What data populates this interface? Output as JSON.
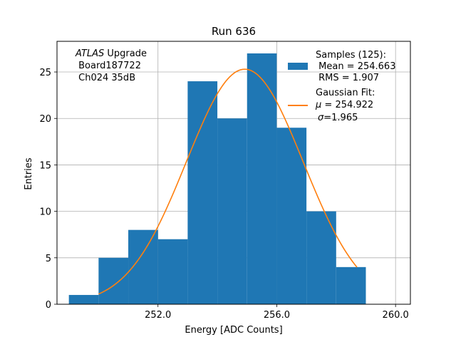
{
  "chart_data": {
    "type": "bar",
    "title": "Run 636",
    "xlabel": "Energy [ADC Counts]",
    "ylabel": "Entries",
    "xlim": [
      248.6,
      260.5
    ],
    "ylim": [
      0,
      28.3
    ],
    "xticks": [
      252.0,
      256.0,
      260.0
    ],
    "xtick_labels": [
      "252.0",
      "256.0",
      "260.0"
    ],
    "yticks": [
      0,
      5,
      10,
      15,
      20,
      25
    ],
    "ytick_labels": [
      "0",
      "5",
      "10",
      "15",
      "20",
      "25"
    ],
    "grid": true,
    "bin_edges": [
      249.0,
      250.0,
      251.0,
      252.0,
      253.0,
      254.0,
      255.0,
      256.0,
      257.0,
      258.0,
      259.0
    ],
    "values": [
      1,
      5,
      8,
      7,
      24,
      20,
      27,
      19,
      10,
      4
    ],
    "bar_color": "#1f77b4",
    "fit_color": "#ff7f0e",
    "fit": {
      "mu": 254.922,
      "sigma": 1.965,
      "amplitude": 25.3,
      "x_range": [
        250.0,
        258.7
      ]
    },
    "annotation": {
      "line1_italic": "ATLAS",
      "line1_rest": " Upgrade",
      "line2": " Board187722",
      "line3": " Ch024 35dB"
    },
    "legend": {
      "position": "upper right",
      "samples_line1": "Samples (125):",
      "samples_line2": " Mean = 254.663",
      "samples_line3": " RMS = 1.907",
      "fit_line1": "Gaussian Fit:",
      "fit_line2_sym": "μ",
      "fit_line2_rest": " = 254.922",
      "fit_line3_sym": "σ",
      "fit_line3_rest": "=1.965"
    }
  }
}
